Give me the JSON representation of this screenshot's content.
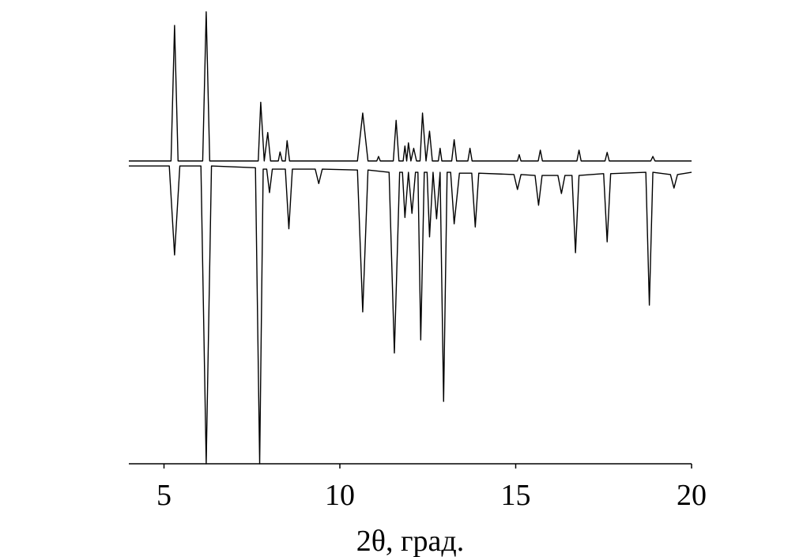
{
  "chart_data": {
    "type": "line",
    "x_label": "2θ, град.",
    "xlim": [
      4,
      20
    ],
    "xticks": [
      5,
      10,
      15,
      20
    ],
    "ylim": [
      0,
      100
    ],
    "series": [
      {
        "color": "#000000",
        "x": [
          4,
          5.2,
          5.3,
          5.4,
          6.1,
          6.2,
          6.3,
          7.68,
          7.75,
          7.85,
          7.95,
          8.03,
          8.25,
          8.3,
          8.36,
          8.45,
          8.5,
          8.57,
          10.5,
          10.65,
          10.8,
          11.05,
          11.1,
          11.15,
          11.52,
          11.6,
          11.68,
          11.8,
          11.85,
          11.9,
          11.95,
          12.02,
          12.1,
          12.18,
          12.28,
          12.35,
          12.45,
          12.55,
          12.63,
          12.8,
          12.85,
          12.9,
          13.18,
          13.25,
          13.32,
          13.64,
          13.7,
          13.76,
          15.05,
          15.1,
          15.15,
          15.64,
          15.7,
          15.76,
          16.74,
          16.8,
          16.86,
          17.54,
          17.6,
          17.66,
          18.84,
          18.9,
          18.96,
          20
        ],
        "values": [
          67,
          67,
          97,
          67,
          67,
          100,
          67,
          67,
          80,
          67,
          73.3,
          67,
          67,
          69,
          67,
          67,
          71.5,
          67,
          67,
          77.6,
          67,
          67,
          68,
          67,
          67,
          76,
          67,
          67,
          70.3,
          67,
          71,
          67,
          69.8,
          67,
          67,
          77.6,
          67,
          73.6,
          67,
          67,
          69.8,
          67,
          67,
          71.7,
          67,
          67,
          69.8,
          67,
          67,
          68.4,
          67,
          67,
          69.4,
          67,
          67,
          69.4,
          67,
          67,
          68.9,
          67,
          67,
          68,
          67,
          67
        ]
      },
      {
        "color": "#000000",
        "x": [
          4,
          5.15,
          5.3,
          5.45,
          6.05,
          6.2,
          6.35,
          7.6,
          7.72,
          7.82,
          7.92,
          8.0,
          8.08,
          8.45,
          8.55,
          8.65,
          9.3,
          9.4,
          9.5,
          10.5,
          10.65,
          10.8,
          11.4,
          11.55,
          11.7,
          11.78,
          11.85,
          11.95,
          12.05,
          12.15,
          12.22,
          12.3,
          12.4,
          12.48,
          12.55,
          12.65,
          12.75,
          12.85,
          12.95,
          13.05,
          13.15,
          13.25,
          13.4,
          13.75,
          13.85,
          13.95,
          14.95,
          15.05,
          15.15,
          15.55,
          15.65,
          15.75,
          16.2,
          16.3,
          16.4,
          16.6,
          16.7,
          16.8,
          17.5,
          17.6,
          17.7,
          18.7,
          18.8,
          18.9,
          19.4,
          19.5,
          19.6,
          20
        ],
        "values": [
          65.9,
          65.9,
          46.2,
          65.9,
          65.9,
          0,
          65.9,
          65.5,
          0,
          65.2,
          65.2,
          60,
          65.2,
          65.2,
          52,
          65.2,
          65.2,
          62,
          65.2,
          65,
          33.6,
          65,
          64.5,
          24.5,
          64.5,
          64.5,
          54.5,
          64.5,
          55.4,
          64.5,
          64.5,
          27.4,
          64.5,
          64.5,
          50.2,
          64.5,
          54.2,
          64.5,
          13.8,
          64.5,
          64.5,
          53.1,
          64.3,
          64.3,
          52.4,
          64.3,
          64,
          60.7,
          64,
          63.8,
          57.2,
          63.8,
          63.8,
          59.8,
          63.8,
          63.8,
          46.7,
          63.8,
          64.2,
          49.1,
          64.2,
          64.5,
          35.1,
          64.5,
          64,
          61,
          64,
          64.5
        ]
      }
    ]
  }
}
